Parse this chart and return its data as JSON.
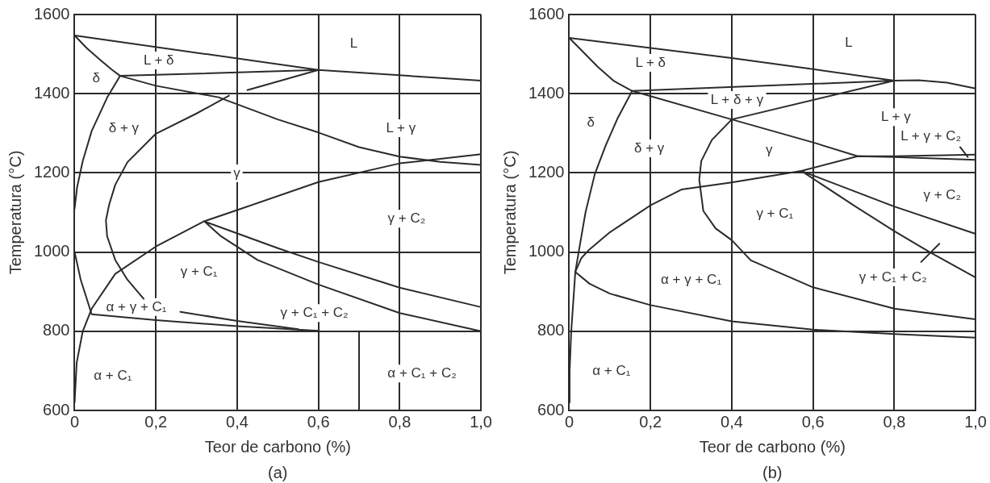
{
  "chart_data": [
    {
      "type": "line",
      "xlabel": "Teor de carbono (%)",
      "ylabel": "Temperatura (°C)",
      "xlim": [
        0,
        1
      ],
      "ylim": [
        600,
        1600
      ],
      "xticks": [
        0,
        {
          "value": 0.2,
          "label": "0,2"
        },
        {
          "value": 0.4,
          "label": "0,4"
        },
        {
          "value": 0.6,
          "label": "0,6"
        },
        {
          "value": 0.8,
          "label": "0,8"
        },
        {
          "value": 1,
          "label": "1,0"
        }
      ],
      "yticks": [
        600,
        800,
        1000,
        1200,
        1400,
        1600
      ],
      "grid": true,
      "marker": "none",
      "line_style": "solid",
      "legend": false,
      "series": [
        {
          "color": "#2b2b2b",
          "x": [
            1.0,
            0.6,
            0,
            0.03,
            0.06,
            0.09,
            0.112,
            0.6,
            0.425
          ],
          "values": [
            1433,
            1460,
            1547,
            1515,
            1488,
            1462,
            1445,
            1460,
            1409
          ]
        },
        {
          "color": "#2b2b2b",
          "x": [
            0,
            0.006,
            0.02,
            0.042,
            0.08,
            0.112,
            0.2,
            0.354,
            0.5,
            0.6,
            0.7,
            0.8,
            0.9,
            1.0
          ],
          "values": [
            1110,
            1163,
            1230,
            1306,
            1390,
            1445,
            1420,
            1391,
            1335,
            1302,
            1265,
            1241,
            1228,
            1220
          ]
        },
        {
          "color": "#2b2b2b",
          "x": [
            0.38,
            0.3,
            0.2,
            0.13,
            0.1,
            0.085,
            0.077,
            0.08,
            0.1,
            0.13,
            0.17
          ],
          "values": [
            1395,
            1350,
            1299,
            1227,
            1170,
            1120,
            1080,
            1040,
            980,
            930,
            882
          ]
        },
        {
          "color": "#2b2b2b",
          "x": [
            0,
            0.005,
            0.02,
            0.042,
            0.1,
            0.2,
            0.317,
            0.4,
            0.6,
            0.8,
            1.0
          ],
          "values": [
            620,
            720,
            800,
            857,
            945,
            1014,
            1077,
            1106,
            1177,
            1224,
            1247
          ]
        },
        {
          "color": "#2b2b2b",
          "x": [
            1.0,
            0.8,
            0.6,
            0.5,
            0.32,
            0.36,
            0.45,
            0.6,
            0.8,
            1.0
          ],
          "values": [
            861,
            910,
            975,
            1010,
            1077,
            1040,
            980,
            918,
            846,
            800
          ]
        },
        {
          "color": "#2b2b2b",
          "x": [
            0,
            0.015,
            0.042,
            0.2,
            0.4,
            0.6
          ],
          "values": [
            1000,
            930,
            843,
            828,
            813,
            801
          ]
        },
        {
          "color": "#2b2b2b",
          "x": [
            0.26,
            0.4,
            0.55
          ],
          "values": [
            849,
            826,
            805
          ]
        },
        {
          "color": "#2b2b2b",
          "x": [
            0.7,
            0.7
          ],
          "values": [
            600,
            800
          ]
        }
      ],
      "annotations": [
        "L",
        "L + δ",
        "δ",
        "δ + γ",
        "L + γ",
        "γ",
        "γ + C₂",
        "γ + C₁",
        "α + γ + C₁",
        "γ + C₁ + C₂",
        "α + C₁",
        "α + C₁ + C₂",
        "(a)"
      ]
    },
    {
      "type": "line",
      "xlabel": "Teor de carbono (%)",
      "ylabel": "Temperatura (°C)",
      "xlim": [
        0,
        1
      ],
      "ylim": [
        600,
        1600
      ],
      "xticks": [
        0,
        {
          "value": 0.2,
          "label": "0,2"
        },
        {
          "value": 0.4,
          "label": "0,4"
        },
        {
          "value": 0.6,
          "label": "0,6"
        },
        {
          "value": 0.8,
          "label": "0,8"
        },
        {
          "value": 1,
          "label": "1,0"
        }
      ],
      "yticks": [
        600,
        800,
        1000,
        1200,
        1400,
        1600
      ],
      "grid": true,
      "marker": "none",
      "line_style": "solid",
      "legend": false,
      "series": [
        {
          "color": "#2b2b2b",
          "x": [
            1.0,
            0.93,
            0.86,
            0.8,
            0.6,
            0.4,
            0,
            0.03,
            0.07,
            0.11,
            0.155,
            0.8,
            0.4,
            0.351,
            0.325,
            0.32,
            0.33,
            0.36,
            0.4,
            0.447,
            0.6,
            0.8,
            1.0
          ],
          "values": [
            1413,
            1428,
            1434,
            1433,
            1462,
            1490,
            1541,
            1510,
            1468,
            1432,
            1407,
            1433,
            1335,
            1283,
            1230,
            1183,
            1104,
            1060,
            1030,
            979,
            911,
            857,
            830
          ]
        },
        {
          "color": "#2b2b2b",
          "x": [
            0,
            0.001,
            0.005,
            0.015,
            0.025,
            0.04,
            0.063,
            0.09,
            0.12,
            0.155,
            0.4,
            0.6,
            0.71,
            0.8,
            1.0
          ],
          "values": [
            620,
            700,
            800,
            950,
            1010,
            1100,
            1197,
            1270,
            1340,
            1407,
            1335,
            1277,
            1242,
            1242,
            1246
          ]
        },
        {
          "color": "#2b2b2b",
          "x": [
            1.0,
            0.8,
            0.6,
            0.4,
            0.2,
            0.1,
            0.05,
            0.015,
            0.03,
            0.049,
            0.1,
            0.2,
            0.276,
            0.4,
            0.571,
            0.71,
            0.8,
            1.0
          ],
          "values": [
            784,
            793,
            804,
            825,
            866,
            895,
            920,
            950,
            985,
            1006,
            1050,
            1118,
            1158,
            1176,
            1205,
            1242,
            1240,
            1233
          ]
        },
        {
          "color": "#2b2b2b",
          "x": [
            1.0,
            0.8,
            0.571,
            0.7,
            0.8,
            0.887,
            1.0
          ],
          "values": [
            1046,
            1115,
            1205,
            1118,
            1053,
            1000,
            936
          ]
        },
        {
          "color": "#2b2b2b",
          "x": [
            0.962,
            0.981
          ],
          "values": [
            1265,
            1240
          ]
        },
        {
          "color": "#2b2b2b",
          "x": [
            0.866,
            0.911
          ],
          "values": [
            975,
            1021
          ]
        }
      ],
      "annotations": [
        "L",
        "L + δ",
        "L + δ + γ",
        "δ",
        "δ + γ",
        "γ",
        "L + γ",
        "L + γ + C₂",
        "γ + C₂",
        "γ + C₁",
        "α + γ + C₁",
        "γ + C₁ + C₂",
        "α + C₁",
        "(b)"
      ]
    }
  ]
}
